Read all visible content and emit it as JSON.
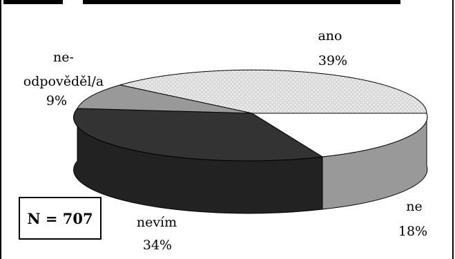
{
  "chart_data": {
    "type": "pie",
    "title": "",
    "sample_size_label": "N = 707",
    "slices": [
      {
        "label": "ano",
        "value": 39,
        "percent_label": "39%",
        "color": "#d9d9d9",
        "pattern": "dots"
      },
      {
        "label": "ne",
        "value": 18,
        "percent_label": "18%",
        "color": "#ffffff"
      },
      {
        "label": "nevím",
        "value": 34,
        "percent_label": "34%",
        "color": "#333333"
      },
      {
        "label": "ne-odpověděl/a",
        "label_lines": [
          "ne-",
          "odpověděl/a"
        ],
        "value": 9,
        "percent_label": "9%",
        "color": "#999999"
      }
    ],
    "colors": {
      "ano": "#d9d9d9",
      "ne": "#ffffff",
      "nevim": "#333333",
      "neodpovedel": "#999999"
    }
  }
}
